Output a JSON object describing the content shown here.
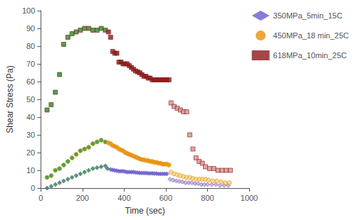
{
  "chart_data": {
    "type": "scatter",
    "xlabel": "Time (sec)",
    "ylabel": "Shear Stress (Pa)",
    "xlim": [
      0,
      1000
    ],
    "ylim": [
      0,
      100
    ],
    "xticks": [
      0,
      200,
      400,
      600,
      800,
      1000
    ],
    "yticks": [
      0,
      10,
      20,
      30,
      40,
      50,
      60,
      70,
      80,
      90,
      100
    ],
    "grid": false,
    "legend": "right",
    "series": [
      {
        "name": "350MPa_5min_15C",
        "color": "#6A5ACD",
        "marker": "diamond",
        "x": [
          30,
          50,
          70,
          90,
          110,
          130,
          150,
          170,
          190,
          210,
          230,
          250,
          270,
          290,
          310,
          320,
          335,
          345,
          355,
          365,
          375,
          385,
          395,
          405,
          415,
          425,
          435,
          445,
          455,
          465,
          475,
          485,
          495,
          505,
          515,
          525,
          535,
          545,
          555,
          565,
          575,
          585,
          595,
          605,
          620,
          635,
          650,
          665,
          680,
          695,
          710,
          725,
          740,
          755,
          770,
          785,
          800,
          820,
          840,
          860,
          880,
          900
        ],
        "values": [
          0,
          1,
          2,
          3,
          4,
          5,
          6,
          7,
          8,
          9,
          10,
          11,
          11.5,
          12,
          12.5,
          11,
          10.5,
          10.2,
          10,
          9.8,
          9.5,
          9.5,
          9.5,
          9.3,
          9,
          9,
          9,
          9,
          8.8,
          8.7,
          8.5,
          8.5,
          8.5,
          8.5,
          8.3,
          8.3,
          8.3,
          8.2,
          8.2,
          8,
          8,
          8,
          8,
          8,
          5,
          4.5,
          4,
          3.8,
          3.5,
          3,
          3,
          3,
          2.5,
          2.5,
          2,
          2,
          2,
          2,
          2,
          1.5,
          1.5,
          1.5
        ],
        "colors": [
          "#228B22",
          "#228B22",
          "#228B22",
          "#228B22",
          "#228B22",
          "#228B22",
          "#228B22",
          "#228B22",
          "#228B22",
          "#228B22",
          "#228B22",
          "#228B22",
          "#228B22",
          "#228B22",
          "#228B22",
          "#228B22",
          "#6A5ACD",
          "#6A5ACD",
          "#6A5ACD",
          "#6A5ACD",
          "#6A5ACD",
          "#6A5ACD",
          "#6A5ACD",
          "#6A5ACD",
          "#6A5ACD",
          "#6A5ACD",
          "#6A5ACD",
          "#6A5ACD",
          "#6A5ACD",
          "#6A5ACD",
          "#6A5ACD",
          "#6A5ACD",
          "#6A5ACD",
          "#6A5ACD",
          "#6A5ACD",
          "#6A5ACD",
          "#6A5ACD",
          "#6A5ACD",
          "#6A5ACD",
          "#6A5ACD",
          "#6A5ACD",
          "#6A5ACD",
          "#6A5ACD",
          "#6A5ACD",
          "#C8A8C8",
          "#C8A8C8",
          "#C8A8C8",
          "#C8A8C8",
          "#C8A8C8",
          "#C8A8C8",
          "#C8A8C8",
          "#C8A8C8",
          "#C8A8C8",
          "#C8A8C8",
          "#C8A8C8",
          "#C8A8C8",
          "#C8A8C8",
          "#C8A8C8",
          "#C8A8C8",
          "#C8A8C8",
          "#C8A8C8",
          "#C8A8C8"
        ]
      },
      {
        "name": "450MPa_18 min_25C",
        "color": "#E8900A",
        "marker": "circle",
        "x": [
          30,
          50,
          70,
          90,
          110,
          130,
          150,
          170,
          190,
          210,
          230,
          250,
          270,
          290,
          310,
          325,
          335,
          345,
          355,
          365,
          375,
          385,
          395,
          405,
          415,
          425,
          435,
          445,
          455,
          465,
          475,
          485,
          495,
          505,
          515,
          525,
          535,
          545,
          555,
          565,
          575,
          585,
          595,
          605,
          615,
          625,
          640,
          655,
          670,
          685,
          700,
          715,
          730,
          745,
          760,
          775,
          790,
          805,
          825,
          845,
          865,
          885,
          905
        ],
        "values": [
          6,
          7,
          10,
          11,
          13,
          15,
          17,
          19,
          21,
          22,
          23,
          25,
          26,
          27,
          26,
          25.5,
          25,
          24,
          23.5,
          23,
          22,
          21.5,
          21,
          20,
          19.5,
          19,
          18.5,
          18,
          17.5,
          17,
          16.5,
          16,
          16,
          15.5,
          15.5,
          15,
          15,
          14.5,
          14.5,
          14,
          14,
          13.5,
          13.5,
          13.5,
          13,
          9,
          8,
          7.5,
          7,
          6.5,
          6,
          6,
          5.5,
          5,
          5,
          5,
          5,
          4.5,
          4,
          4,
          3.5,
          3,
          3
        ],
        "colors": [
          "#228B22",
          "#228B22",
          "#228B22",
          "#228B22",
          "#228B22",
          "#228B22",
          "#228B22",
          "#228B22",
          "#228B22",
          "#228B22",
          "#228B22",
          "#228B22",
          "#228B22",
          "#228B22",
          "#228B22",
          "#E8900A",
          "#E8900A",
          "#E8900A",
          "#E8900A",
          "#E8900A",
          "#E8900A",
          "#E8900A",
          "#E8900A",
          "#E8900A",
          "#E8900A",
          "#E8900A",
          "#E8900A",
          "#E8900A",
          "#E8900A",
          "#E8900A",
          "#E8900A",
          "#E8900A",
          "#E8900A",
          "#E8900A",
          "#E8900A",
          "#E8900A",
          "#E8900A",
          "#E8900A",
          "#E8900A",
          "#E8900A",
          "#E8900A",
          "#E8900A",
          "#E8900A",
          "#E8900A",
          "#E8900A",
          "#F0D080",
          "#F0D080",
          "#F0D080",
          "#F0D080",
          "#F0D080",
          "#F0D080",
          "#F0D080",
          "#F0D080",
          "#F0D080",
          "#F0D080",
          "#F0D080",
          "#F0D080",
          "#F0D080",
          "#F0D080",
          "#F0D080",
          "#F0D080",
          "#F0D080",
          "#F0D080"
        ]
      },
      {
        "name": "618MPa_10min_25C",
        "color": "#8B1A1A",
        "marker": "square",
        "x": [
          30,
          50,
          70,
          90,
          110,
          130,
          150,
          170,
          190,
          210,
          230,
          250,
          270,
          290,
          310,
          325,
          335,
          345,
          355,
          365,
          375,
          385,
          395,
          405,
          415,
          425,
          435,
          445,
          455,
          465,
          475,
          485,
          495,
          505,
          515,
          525,
          535,
          545,
          555,
          565,
          575,
          585,
          595,
          605,
          615,
          625,
          640,
          655,
          670,
          685,
          700,
          715,
          730,
          745,
          760,
          775,
          790,
          810,
          830,
          850,
          870,
          890,
          910
        ],
        "values": [
          44,
          47,
          54,
          64,
          81,
          85,
          87,
          88,
          89,
          90,
          90,
          89,
          89,
          90,
          89,
          88,
          85,
          77,
          76,
          76,
          71,
          71,
          70,
          70,
          70,
          69,
          68,
          67,
          66,
          65.5,
          65,
          64,
          63,
          63,
          62,
          62,
          61,
          61,
          61,
          61,
          61,
          61,
          61,
          61,
          61,
          48,
          46,
          45,
          44,
          43,
          43,
          30,
          22,
          17,
          15,
          14,
          12,
          11,
          11,
          10,
          10,
          10,
          10
        ],
        "colors": [
          "#228B22",
          "#228B22",
          "#228B22",
          "#228B22",
          "#228B22",
          "#228B22",
          "#228B22",
          "#228B22",
          "#228B22",
          "#228B22",
          "#228B22",
          "#228B22",
          "#228B22",
          "#228B22",
          "#228B22",
          "#8B1A1A",
          "#8B1A1A",
          "#8B1A1A",
          "#8B1A1A",
          "#8B1A1A",
          "#8B1A1A",
          "#8B1A1A",
          "#8B1A1A",
          "#8B1A1A",
          "#8B1A1A",
          "#8B1A1A",
          "#8B1A1A",
          "#8B1A1A",
          "#8B1A1A",
          "#8B1A1A",
          "#8B1A1A",
          "#8B1A1A",
          "#8B1A1A",
          "#8B1A1A",
          "#8B1A1A",
          "#8B1A1A",
          "#8B1A1A",
          "#8B1A1A",
          "#8B1A1A",
          "#8B1A1A",
          "#8B1A1A",
          "#8B1A1A",
          "#8B1A1A",
          "#8B1A1A",
          "#8B1A1A",
          "#D89090",
          "#D89090",
          "#D89090",
          "#D89090",
          "#D89090",
          "#D89090",
          "#D89090",
          "#D89090",
          "#D89090",
          "#D89090",
          "#D89090",
          "#D89090",
          "#D89090",
          "#D89090",
          "#D89090",
          "#D89090",
          "#D89090",
          "#D89090"
        ]
      }
    ]
  }
}
